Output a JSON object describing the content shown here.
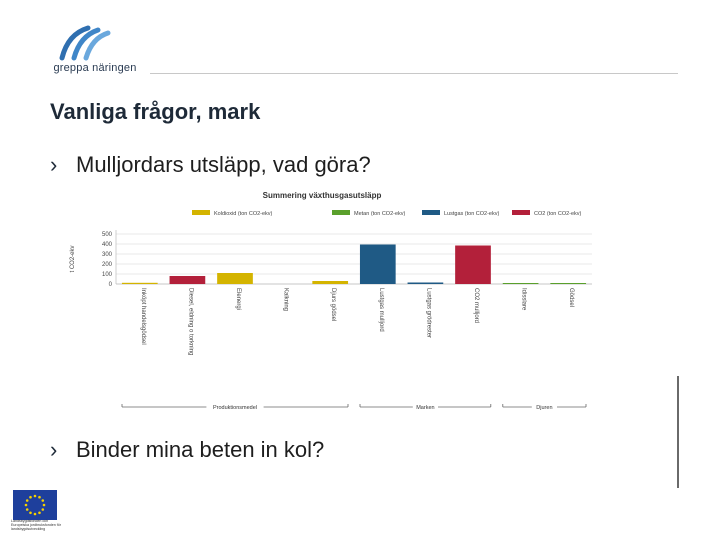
{
  "logo": {
    "brand": "greppa näringen"
  },
  "slide": {
    "title": "Vanliga frågor, mark",
    "bullets": [
      "Mulljordars utsläpp, vad göra?",
      "Binder mina beten in kol?"
    ],
    "bullet_marker": "›"
  },
  "eu": {
    "caption": "Landsbygdsfonden och Europeiska jordbruksfonden för landsbygdsutveckling"
  },
  "colors": {
    "co2": "#d4b400",
    "ch4": "#5aa02c",
    "n2o": "#1f5a85",
    "co2_other": "#b3203a"
  },
  "chart_data": {
    "type": "bar",
    "title": "Summering växthusgasutsläpp",
    "ylabel": "t CO2-ekv",
    "ylim": [
      0,
      500
    ],
    "yticks": [
      0,
      100,
      200,
      300,
      400,
      500
    ],
    "categories": [
      "Inköpt handelsgödsel",
      "Diesel, eldning o torkning",
      "Elenergi",
      "Kalkning",
      "Djurs gödsel",
      "Lustgas mulljord",
      "Lustgas grödrester",
      "CO2 mulljord",
      "Idisslare",
      "Gödsel"
    ],
    "values": [
      12,
      80,
      110,
      0,
      30,
      395,
      15,
      385,
      10,
      10
    ],
    "series_index": [
      0,
      3,
      0,
      0,
      0,
      2,
      2,
      3,
      1,
      1
    ],
    "series": [
      {
        "name": "Koldioxid (ton CO2-ekv)"
      },
      {
        "name": "Metan (ton CO2-ekv)"
      },
      {
        "name": "Lustgas (ton CO2-ekv)"
      },
      {
        "name": "CO2 (ton CO2-ekv)"
      }
    ],
    "groups": [
      {
        "label": "Produktionsmedel",
        "from": 0,
        "to": 4
      },
      {
        "label": "Marken",
        "from": 5,
        "to": 7
      },
      {
        "label": "Djuren",
        "from": 8,
        "to": 9
      }
    ],
    "legend_position": "top"
  }
}
